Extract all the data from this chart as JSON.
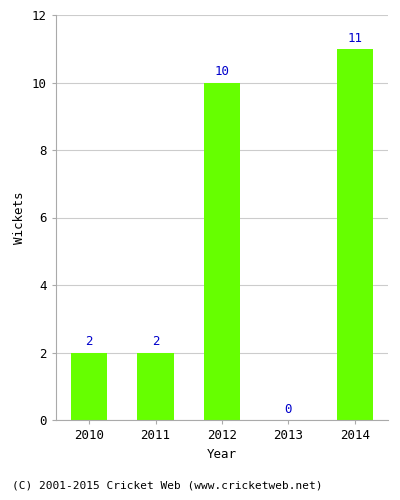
{
  "categories": [
    "2010",
    "2011",
    "2012",
    "2013",
    "2014"
  ],
  "values": [
    2,
    2,
    10,
    0,
    11
  ],
  "bar_color": "#66ff00",
  "bar_edgecolor": "#66ff00",
  "title": "",
  "xlabel": "Year",
  "ylabel": "Wickets",
  "ylim": [
    0,
    12
  ],
  "yticks": [
    0,
    2,
    4,
    6,
    8,
    10,
    12
  ],
  "label_color": "#0000cc",
  "label_fontsize": 9,
  "axis_label_fontsize": 9,
  "tick_fontsize": 9,
  "footer_text": "(C) 2001-2015 Cricket Web (www.cricketweb.net)",
  "footer_fontsize": 8,
  "background_color": "#ffffff",
  "grid_color": "#cccccc"
}
